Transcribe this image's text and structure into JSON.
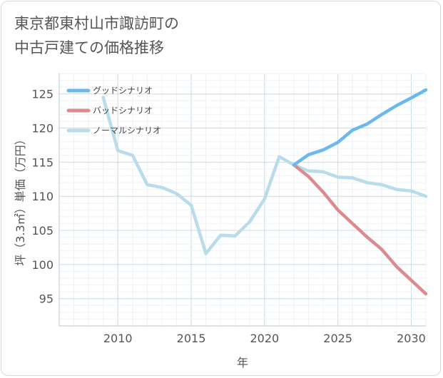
{
  "title_lines": [
    "東京都東村山市諏訪町の",
    "中古戸建ての価格推移"
  ],
  "chart_data": {
    "type": "line",
    "title": "東京都東村山市諏訪町の中古戸建ての価格推移",
    "xlabel": "年",
    "ylabel": "坪（3.3㎡）単価（万円）",
    "xlim": [
      2006,
      2031
    ],
    "ylim": [
      91,
      128
    ],
    "xticks": [
      2010,
      2015,
      2020,
      2025,
      2030
    ],
    "yticks": [
      95,
      100,
      105,
      110,
      115,
      120,
      125
    ],
    "grid": true,
    "legend_position": "top-left",
    "series": [
      {
        "name": "グッドシナリオ",
        "color": "#6bb8ef",
        "x": [
          2022,
          2023,
          2024,
          2025,
          2026,
          2027,
          2028,
          2029,
          2030,
          2031
        ],
        "y": [
          114.6,
          116.1,
          116.8,
          117.9,
          119.7,
          120.6,
          122.0,
          123.3,
          124.4,
          125.6
        ]
      },
      {
        "name": "バッドシナリオ",
        "color": "#dc8a8f",
        "x": [
          2022,
          2023,
          2024,
          2025,
          2026,
          2027,
          2028,
          2029,
          2030,
          2031
        ],
        "y": [
          114.6,
          112.9,
          110.6,
          108.0,
          106.0,
          104.0,
          102.2,
          99.7,
          97.7,
          95.7
        ]
      },
      {
        "name": "ノーマルシナリオ",
        "color": "#b9dcea",
        "x": [
          2009,
          2010,
          2011,
          2012,
          2013,
          2014,
          2015,
          2016,
          2017,
          2018,
          2019,
          2020,
          2021,
          2022,
          2023,
          2024,
          2025,
          2026,
          2027,
          2028,
          2029,
          2030,
          2031
        ],
        "y": [
          124.5,
          116.7,
          116.0,
          111.7,
          111.3,
          110.4,
          108.7,
          101.6,
          104.3,
          104.2,
          106.3,
          109.6,
          115.8,
          114.6,
          113.7,
          113.6,
          112.8,
          112.7,
          112.0,
          111.7,
          111.0,
          110.8,
          110.0
        ]
      }
    ]
  }
}
